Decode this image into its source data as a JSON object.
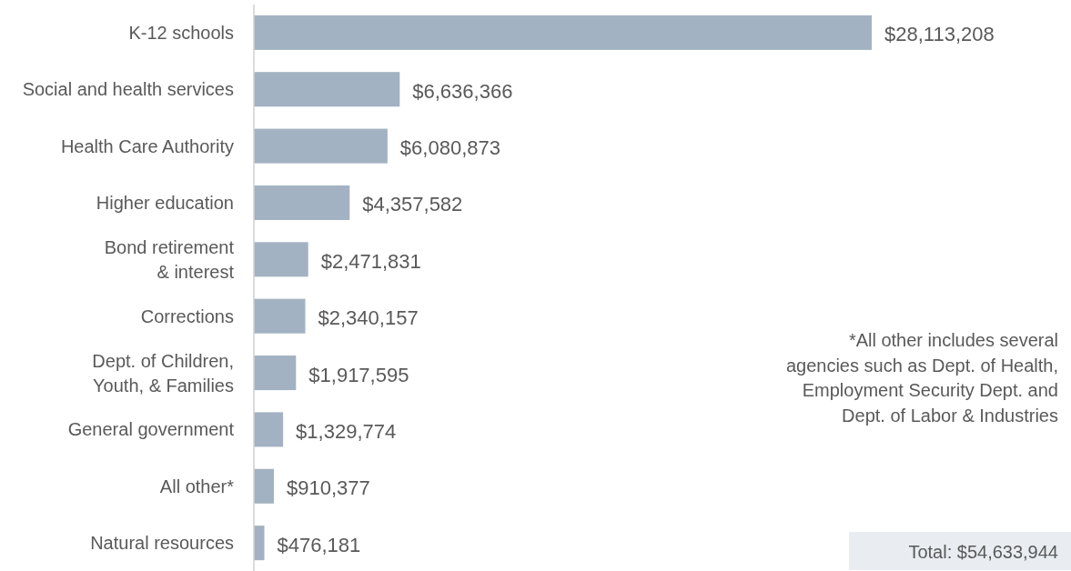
{
  "chart_data": {
    "type": "bar",
    "orientation": "horizontal",
    "categories": [
      "K-12 schools",
      "Social and health services",
      "Health Care Authority",
      "Higher education",
      "Bond retirement\n& interest",
      "Corrections",
      "Dept. of Children,\nYouth, & Families",
      "General government",
      "All other*",
      "Natural resources"
    ],
    "values": [
      28113208,
      6636366,
      6080873,
      4357582,
      2471831,
      2340157,
      1917595,
      1329774,
      910377,
      476181
    ],
    "value_labels": [
      "$28,113,208",
      "$6,636,366",
      "$6,080,873",
      "$4,357,582",
      "$2,471,831",
      "$2,340,157",
      "$1,917,595",
      "$1,329,774",
      "$910,377",
      "$476,181"
    ],
    "color": "#a3b2c2",
    "annotations": [
      "*All other includes several\nagencies such as Dept. of Health,\nEmployment Security Dept. and\nDept. of Labor & Industries",
      "Total: $54,633,944"
    ]
  }
}
